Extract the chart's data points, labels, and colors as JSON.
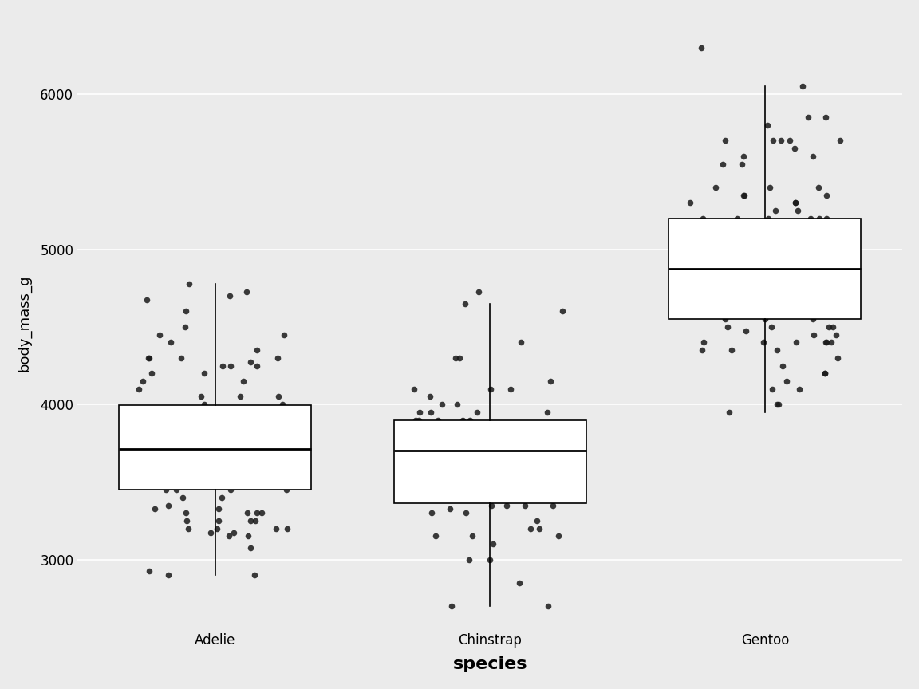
{
  "title": "",
  "xlabel": "species",
  "ylabel": "body_mass_g",
  "xlabel_fontsize": 16,
  "ylabel_fontsize": 13,
  "tick_fontsize": 12,
  "background_color": "#EBEBEB",
  "grid_color": "#FFFFFF",
  "ylim": [
    2550,
    6500
  ],
  "yticks": [
    3000,
    4000,
    5000,
    6000
  ],
  "categories": [
    "Adelie",
    "Chinstrap",
    "Gentoo"
  ],
  "box_width": 0.35,
  "dot_color": "#1a1a1a",
  "dot_size": 30,
  "dot_alpha": 0.85,
  "adelie_data": [
    3750,
    3800,
    3250,
    3450,
    3650,
    3625,
    4675,
    3475,
    4250,
    3300,
    3700,
    3200,
    3800,
    4400,
    3700,
    3450,
    4500,
    3325,
    4200,
    3400,
    3600,
    3800,
    3950,
    3800,
    3800,
    3800,
    3550,
    3200,
    3150,
    3950,
    3800,
    3800,
    4300,
    4450,
    3450,
    3525,
    3500,
    3675,
    4150,
    3700,
    3800,
    3775,
    3700,
    4050,
    3575,
    4050,
    3300,
    3700,
    4250,
    3700,
    3900,
    3550,
    4000,
    3200,
    4700,
    3800,
    4200,
    3350,
    3550,
    3800,
    3500,
    3950,
    3600,
    3550,
    4300,
    3400,
    4450,
    3300,
    4300,
    3700,
    4350,
    2900,
    4100,
    3725,
    4725,
    3075,
    4250,
    2925,
    3550,
    3750,
    3900,
    3175,
    4775,
    3825,
    4600,
    3200,
    4275,
    3900,
    3975,
    3175,
    3975,
    3150,
    3250,
    3900,
    3300,
    3675,
    3250,
    4000,
    3900,
    3325,
    4150,
    3950,
    3250,
    3550,
    4300,
    3450,
    4050,
    2900,
    3700,
    3550
  ],
  "chinstrap_data": [
    3500,
    3900,
    3650,
    3525,
    3725,
    3950,
    3250,
    3750,
    4150,
    3700,
    3800,
    3775,
    3700,
    4050,
    3575,
    4725,
    3200,
    3800,
    4100,
    3350,
    3950,
    3550,
    3300,
    4650,
    3150,
    3900,
    3100,
    4400,
    3000,
    4600,
    3425,
    2700,
    3000,
    4300,
    4000,
    3900,
    3350,
    4100,
    3775,
    4300,
    3350,
    3325,
    3150,
    3500,
    3450,
    3750,
    3700,
    3200,
    3800,
    3350,
    3900,
    3400,
    4100,
    3400,
    3800,
    3700,
    3700,
    4000,
    3950,
    3650,
    3550,
    3900,
    3850,
    3750,
    3550,
    3700,
    2850,
    3150,
    3700,
    3800,
    3300,
    3950,
    3650,
    2700
  ],
  "gentoo_data": [
    4500,
    5700,
    4450,
    5700,
    5400,
    4550,
    4800,
    5200,
    4400,
    5150,
    4650,
    5550,
    4650,
    5850,
    4200,
    5850,
    4150,
    6300,
    4800,
    5350,
    5700,
    5000,
    4400,
    5050,
    5000,
    5100,
    4100,
    5650,
    4600,
    5550,
    5250,
    4700,
    5000,
    6050,
    5150,
    5400,
    4950,
    5250,
    4350,
    5350,
    3950,
    5700,
    4300,
    4750,
    4400,
    4600,
    5200,
    4550,
    4350,
    4400,
    4750,
    4100,
    4350,
    4725,
    5000,
    5400,
    4500,
    5050,
    4500,
    4600,
    5300,
    4400,
    5000,
    5100,
    4450,
    5200,
    4800,
    4950,
    4950,
    5200,
    4900,
    4700,
    4800,
    5300,
    4700,
    5200,
    4250,
    5700,
    4600,
    5800,
    4700,
    4600,
    5300,
    4400,
    5600,
    4750,
    5600,
    4550,
    4900,
    4600,
    4725,
    4900,
    5000,
    5000,
    4750,
    4700,
    4200,
    5050,
    4475,
    5000,
    4000,
    4600,
    4600,
    4500,
    4900,
    4000,
    4875,
    5100,
    4900,
    5350,
    4700,
    5200,
    4600
  ]
}
